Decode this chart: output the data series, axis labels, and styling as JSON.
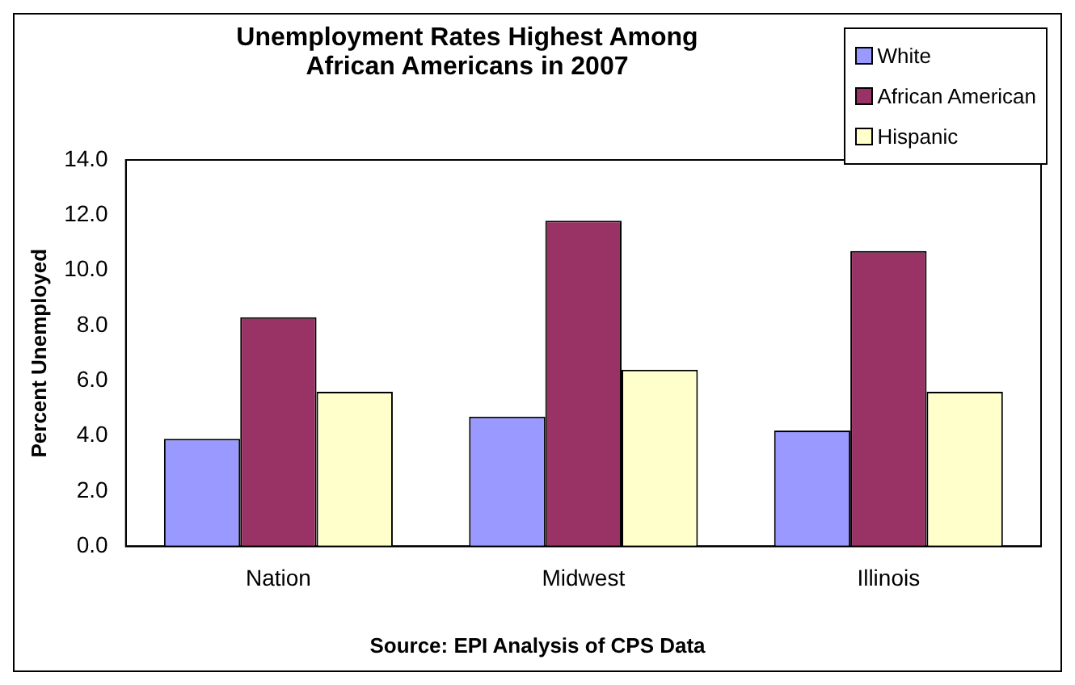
{
  "chart_data": {
    "type": "bar",
    "title": "Unemployment Rates Highest Among African Americans in 2007",
    "ylabel": "Percent Unemployed",
    "categories": [
      "Nation",
      "Midwest",
      "Illinois"
    ],
    "series": [
      {
        "name": "White",
        "color": "#9999ff",
        "values": [
          3.9,
          4.7,
          4.2
        ]
      },
      {
        "name": "African American",
        "color": "#993366",
        "values": [
          8.3,
          11.8,
          10.7
        ]
      },
      {
        "name": "Hispanic",
        "color": "#ffffcc",
        "values": [
          5.6,
          6.4,
          5.6
        ]
      }
    ],
    "ylim": [
      0,
      14
    ],
    "yticks": [
      {
        "value": 0,
        "label": "0.0"
      },
      {
        "value": 2,
        "label": "2.0"
      },
      {
        "value": 4,
        "label": "4.0"
      },
      {
        "value": 6,
        "label": "6.0"
      },
      {
        "value": 8,
        "label": "8.0"
      },
      {
        "value": 10,
        "label": "10.0"
      },
      {
        "value": 12,
        "label": "12.0"
      },
      {
        "value": 14,
        "label": "14.0"
      }
    ],
    "legend": "top right",
    "grid": false,
    "annotations": [
      "Source:  EPI Analysis of CPS Data"
    ]
  }
}
